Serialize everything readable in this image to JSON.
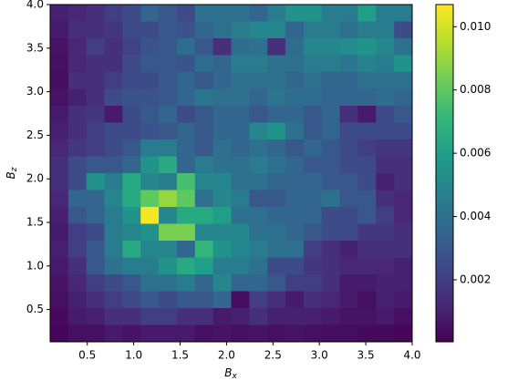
{
  "chart_data": {
    "type": "heatmap",
    "xlabel": [
      "B",
      "x"
    ],
    "ylabel": [
      "B",
      "z"
    ],
    "xlim": [
      0.1,
      4.0
    ],
    "ylim": [
      0.13,
      4.0
    ],
    "xticks": [
      0.5,
      {
        "value": 1,
        "label": "1.0"
      },
      1.5,
      {
        "value": 2,
        "label": "2.0"
      },
      2.5,
      {
        "value": 3,
        "label": "3.0"
      },
      3.5,
      {
        "value": 4,
        "label": "4.0"
      }
    ],
    "yticks": [
      0.5,
      {
        "value": 1,
        "label": "1.0"
      },
      1.5,
      {
        "value": 2,
        "label": "2.0"
      },
      2.5,
      {
        "value": 3,
        "label": "3.0"
      },
      3.5,
      {
        "value": 4,
        "label": "4.0"
      }
    ],
    "colormap": "viridis",
    "clim": [
      4e-05,
      0.0107
    ],
    "cticks": [
      0.002,
      0.004,
      0.006,
      0.008,
      {
        "value": 0.01,
        "label": "0.010"
      }
    ],
    "z": [
      [
        0.001,
        0.0012,
        0.0015,
        0.002,
        0.0025,
        0.0035,
        0.003,
        0.0025,
        0.004,
        0.004,
        0.004,
        0.0035,
        0.0045,
        0.0055,
        0.0055,
        0.0045,
        0.0045,
        0.006,
        0.0045,
        0.0045
      ],
      [
        0.0008,
        0.0015,
        0.0015,
        0.0018,
        0.0025,
        0.0025,
        0.003,
        0.0028,
        0.0035,
        0.004,
        0.0045,
        0.005,
        0.005,
        0.0035,
        0.0045,
        0.0045,
        0.004,
        0.0045,
        0.0045,
        0.0025
      ],
      [
        0.0006,
        0.0012,
        0.002,
        0.0015,
        0.0022,
        0.0028,
        0.003,
        0.0038,
        0.003,
        0.0015,
        0.0038,
        0.004,
        0.0015,
        0.0038,
        0.005,
        0.005,
        0.0052,
        0.0055,
        0.005,
        0.004
      ],
      [
        0.0005,
        0.0012,
        0.0015,
        0.0015,
        0.0025,
        0.003,
        0.003,
        0.0028,
        0.0038,
        0.0035,
        0.0045,
        0.0045,
        0.004,
        0.004,
        0.0045,
        0.0045,
        0.0042,
        0.0048,
        0.0045,
        0.0055
      ],
      [
        0.0004,
        0.0015,
        0.0015,
        0.002,
        0.0025,
        0.0025,
        0.003,
        0.0035,
        0.003,
        0.0035,
        0.004,
        0.004,
        0.004,
        0.0035,
        0.004,
        0.0035,
        0.0035,
        0.004,
        0.004,
        0.004
      ],
      [
        0.0006,
        0.001,
        0.0015,
        0.0025,
        0.0028,
        0.0028,
        0.003,
        0.0035,
        0.0042,
        0.004,
        0.004,
        0.0035,
        0.0042,
        0.0038,
        0.0038,
        0.0035,
        0.0035,
        0.0035,
        0.0038,
        0.0035
      ],
      [
        0.0008,
        0.0015,
        0.0018,
        0.0008,
        0.0025,
        0.003,
        0.0035,
        0.0025,
        0.003,
        0.0035,
        0.0035,
        0.003,
        0.0035,
        0.0035,
        0.003,
        0.0035,
        0.0015,
        0.0008,
        0.0025,
        0.003
      ],
      [
        0.001,
        0.0015,
        0.002,
        0.0025,
        0.0025,
        0.0028,
        0.003,
        0.0035,
        0.003,
        0.0035,
        0.0035,
        0.005,
        0.0055,
        0.004,
        0.003,
        0.0035,
        0.0025,
        0.0025,
        0.0025,
        0.0025
      ],
      [
        0.0012,
        0.0018,
        0.002,
        0.0025,
        0.003,
        0.0045,
        0.0045,
        0.0035,
        0.003,
        0.004,
        0.0035,
        0.004,
        0.0035,
        0.003,
        0.0035,
        0.003,
        0.0025,
        0.002,
        0.0018,
        0.0018
      ],
      [
        0.0015,
        0.0025,
        0.003,
        0.003,
        0.0035,
        0.0055,
        0.0065,
        0.0035,
        0.0045,
        0.004,
        0.004,
        0.0045,
        0.004,
        0.0035,
        0.003,
        0.003,
        0.0025,
        0.0025,
        0.0015,
        0.0015
      ],
      [
        0.0015,
        0.0025,
        0.0055,
        0.0045,
        0.0065,
        0.005,
        0.0045,
        0.0075,
        0.005,
        0.005,
        0.004,
        0.004,
        0.0035,
        0.0035,
        0.0035,
        0.003,
        0.003,
        0.0025,
        0.001,
        0.0015
      ],
      [
        0.0012,
        0.0035,
        0.0035,
        0.005,
        0.0065,
        0.008,
        0.009,
        0.008,
        0.004,
        0.005,
        0.0045,
        0.003,
        0.003,
        0.0035,
        0.0035,
        0.004,
        0.003,
        0.003,
        0.0015,
        0.0012
      ],
      [
        0.001,
        0.003,
        0.0035,
        0.0045,
        0.0055,
        0.0106,
        0.005,
        0.0065,
        0.0065,
        0.006,
        0.004,
        0.004,
        0.0035,
        0.0035,
        0.0035,
        0.0025,
        0.0025,
        0.003,
        0.002,
        0.0012
      ],
      [
        0.0008,
        0.002,
        0.0025,
        0.0045,
        0.005,
        0.0055,
        0.0085,
        0.0085,
        0.005,
        0.005,
        0.005,
        0.004,
        0.004,
        0.0035,
        0.003,
        0.0025,
        0.0025,
        0.0018,
        0.0018,
        0.0015
      ],
      [
        0.001,
        0.002,
        0.003,
        0.0045,
        0.0065,
        0.005,
        0.005,
        0.0035,
        0.007,
        0.0055,
        0.005,
        0.0045,
        0.004,
        0.004,
        0.002,
        0.0015,
        0.001,
        0.0015,
        0.0015,
        0.0015
      ],
      [
        0.0008,
        0.0015,
        0.003,
        0.004,
        0.0045,
        0.0045,
        0.0055,
        0.0065,
        0.006,
        0.0045,
        0.0045,
        0.004,
        0.0025,
        0.0025,
        0.0018,
        0.0015,
        0.0012,
        0.0012,
        0.0012,
        0.001
      ],
      [
        0.0006,
        0.0012,
        0.002,
        0.0025,
        0.003,
        0.004,
        0.004,
        0.0045,
        0.0035,
        0.005,
        0.0035,
        0.0035,
        0.003,
        0.002,
        0.002,
        0.0015,
        0.0008,
        0.0008,
        0.001,
        0.001
      ],
      [
        0.0005,
        0.001,
        0.0015,
        0.002,
        0.0025,
        0.003,
        0.0025,
        0.003,
        0.003,
        0.0035,
        0.0004,
        0.002,
        0.0015,
        0.0008,
        0.0015,
        0.0012,
        0.0008,
        0.0005,
        0.001,
        0.0008
      ],
      [
        0.0003,
        0.0008,
        0.001,
        0.0015,
        0.0015,
        0.002,
        0.002,
        0.0015,
        0.0015,
        0.0008,
        0.001,
        0.0015,
        0.001,
        0.001,
        0.001,
        0.0008,
        0.0006,
        0.0006,
        0.0008,
        0.0005
      ],
      [
        0.0002,
        0.0005,
        0.0005,
        0.0008,
        0.0006,
        0.0008,
        0.0008,
        0.0008,
        0.0005,
        0.0006,
        0.0005,
        0.0006,
        0.0005,
        0.0006,
        0.0005,
        0.0004,
        0.0004,
        0.0003,
        0.0003,
        0.0002
      ]
    ]
  }
}
